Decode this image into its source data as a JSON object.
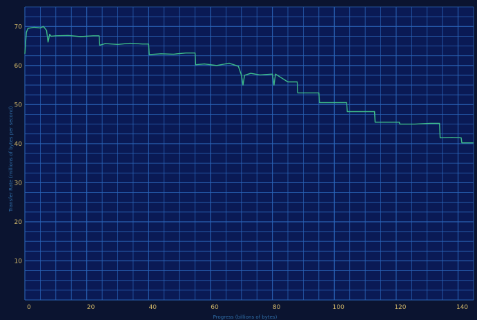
{
  "colors": {
    "background": "#0b1430",
    "plot_background": "#0a1a55",
    "grid": "#2a64b8",
    "line": "#3fbe8a",
    "tick_text": "#d2b86a",
    "axis_title": "#2f6ea8"
  },
  "chart_data": {
    "type": "line",
    "title": "",
    "xlabel": "Progress (billions of bytes)",
    "ylabel": "Transfer Rate (millions of bytes per second)",
    "xlim": [
      0,
      145
    ],
    "ylim": [
      0,
      75
    ],
    "x_ticks": [
      0,
      20,
      40,
      60,
      80,
      100,
      120,
      140
    ],
    "y_ticks": [
      10,
      20,
      30,
      40,
      50,
      60,
      70
    ],
    "grid": true,
    "legend": "none",
    "series": [
      {
        "x": [
          0,
          0.5,
          1,
          3,
          5,
          6,
          7,
          7.5,
          8,
          8.5,
          10,
          14,
          18,
          22,
          24,
          24.2,
          26,
          30,
          34,
          38,
          40,
          40.2,
          44,
          48,
          52,
          55,
          55.2,
          58,
          62,
          66,
          69,
          70,
          70.5,
          71,
          73,
          76,
          80,
          80.5,
          81,
          85,
          88,
          88.2,
          92,
          95,
          95.2,
          100,
          104,
          104.2,
          108,
          112,
          113,
          113.2,
          118,
          121,
          121.2,
          126,
          131,
          134,
          134.2,
          138,
          141,
          141.2,
          145
        ],
        "y": [
          63,
          68.5,
          69.5,
          69.8,
          69.6,
          70.0,
          69.0,
          66.0,
          68.0,
          67.5,
          67.6,
          67.7,
          67.4,
          67.6,
          67.6,
          65.2,
          65.6,
          65.4,
          65.7,
          65.5,
          65.5,
          62.8,
          63.0,
          62.9,
          63.2,
          63.2,
          60.2,
          60.4,
          60.0,
          60.6,
          59.8,
          57.5,
          55.0,
          57.5,
          58.0,
          57.6,
          57.8,
          55.0,
          57.8,
          55.8,
          55.8,
          53.0,
          53.0,
          53.0,
          50.5,
          50.5,
          50.5,
          48.2,
          48.2,
          48.2,
          48.2,
          45.5,
          45.5,
          45.5,
          45.0,
          45.0,
          45.2,
          45.2,
          41.5,
          41.6,
          41.5,
          40.2,
          40.2
        ]
      }
    ]
  }
}
